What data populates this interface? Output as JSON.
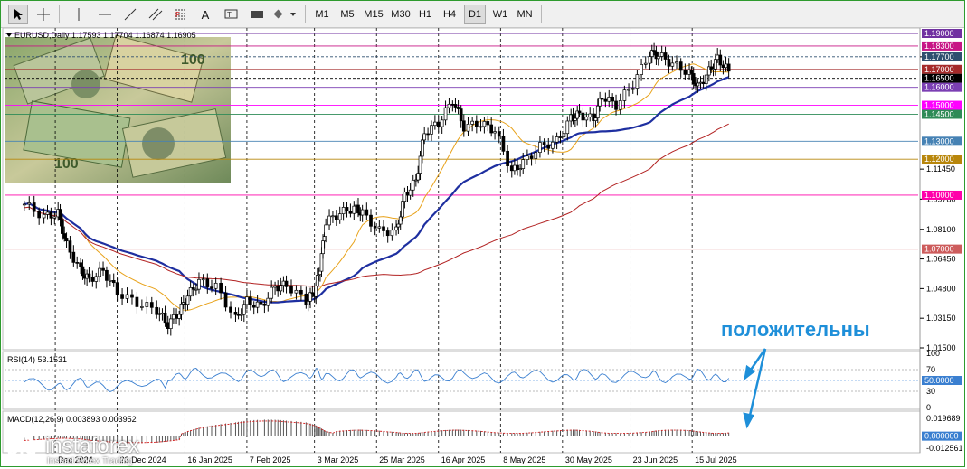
{
  "toolbar": {
    "tools": [
      {
        "name": "cursor-icon",
        "label": "↖"
      },
      {
        "name": "crosshair-icon",
        "label": "+"
      },
      {
        "name": "vertical-line-icon",
        "label": "|"
      },
      {
        "name": "horizontal-line-icon",
        "label": "—"
      },
      {
        "name": "trendline-icon",
        "label": "╱"
      },
      {
        "name": "channel-icon",
        "label": "⫽"
      },
      {
        "name": "fibonacci-icon",
        "label": "F"
      },
      {
        "name": "text-icon",
        "label": "A"
      },
      {
        "name": "label-icon",
        "label": "▬"
      },
      {
        "name": "shapes-icon",
        "label": "◆"
      }
    ],
    "timeframes": [
      "M1",
      "M5",
      "M15",
      "M30",
      "H1",
      "H4",
      "D1",
      "W1",
      "MN"
    ],
    "active_timeframe": "D1"
  },
  "chart": {
    "title": "EURUSD,Daily  1.17593 1.17704 1.16874 1.16905",
    "annotation": "положительны"
  },
  "price_axis": {
    "ticks": [
      "1.17700",
      "1.11450",
      "1.09780",
      "1.08100",
      "1.06450",
      "1.04800",
      "1.03150",
      "1.01500"
    ],
    "tags": [
      {
        "label": "1.19000",
        "color": "#7030a0"
      },
      {
        "label": "1.18300",
        "color": "#c71585"
      },
      {
        "label": "1.17700",
        "color": "#2f4f6f"
      },
      {
        "label": "1.17000",
        "color": "#a52a2a"
      },
      {
        "label": "1.16500",
        "color": "#000000"
      },
      {
        "label": "1.16000",
        "color": "#7b3fb3"
      },
      {
        "label": "1.15000",
        "color": "#ff00ff"
      },
      {
        "label": "1.14500",
        "color": "#2e8b57"
      },
      {
        "label": "1.13000",
        "color": "#4682b4"
      },
      {
        "label": "1.12000",
        "color": "#b8860b"
      },
      {
        "label": "1.10000",
        "color": "#ff00aa"
      },
      {
        "label": "1.07000",
        "color": "#cd5c5c"
      }
    ]
  },
  "time_axis": {
    "labels": [
      "Dec 2024",
      "23 Dec 2024",
      "16 Jan 2025",
      "7 Feb 2025",
      "3 Mar 2025",
      "25 Mar 2025",
      "16 Apr 2025",
      "8 May 2025",
      "30 May 2025",
      "23 Jun 2025",
      "15 Jul 2025"
    ]
  },
  "rsi": {
    "title": "RSI(14) 53.1531",
    "ticks": [
      "100",
      "70",
      "50.0000",
      "30",
      "0"
    ]
  },
  "macd": {
    "title": "MACD(12,26,9) 0.003893 0.003952",
    "ticks": [
      "0.019689",
      "0.000000",
      "-0.012561"
    ]
  },
  "branding": {
    "name": "instaforex",
    "subtitle": "Instant Forex Trading"
  },
  "colors": {
    "ma_fast": "#e8a21a",
    "ma_mid": "#1e2fa0",
    "ma_slow": "#b22222",
    "rsi_line": "#3a7fd0",
    "macd_hist": "#555555",
    "macd_signal": "#d62020",
    "annotation": "#1e8fd9"
  },
  "chart_data": {
    "type": "candlestick",
    "symbol": "EURUSD",
    "timeframe": "Daily",
    "ohlc": {
      "open": 1.17593,
      "high": 1.17704,
      "low": 1.16874,
      "close": 1.16905
    },
    "close_path": [
      [
        "2024-11-20",
        1.095
      ],
      [
        "2024-11-27",
        1.088
      ],
      [
        "2024-12-02",
        1.09
      ],
      [
        "2024-12-05",
        1.072
      ],
      [
        "2024-12-10",
        1.058
      ],
      [
        "2024-12-13",
        1.053
      ],
      [
        "2024-12-18",
        1.058
      ],
      [
        "2024-12-23",
        1.046
      ],
      [
        "2024-12-30",
        1.04
      ],
      [
        "2025-01-06",
        1.036
      ],
      [
        "2025-01-10",
        1.028
      ],
      [
        "2025-01-14",
        1.035
      ],
      [
        "2025-01-17",
        1.044
      ],
      [
        "2025-01-21",
        1.052
      ],
      [
        "2025-01-27",
        1.049
      ],
      [
        "2025-02-03",
        1.031
      ],
      [
        "2025-02-07",
        1.041
      ],
      [
        "2025-02-12",
        1.038
      ],
      [
        "2025-02-17",
        1.049
      ],
      [
        "2025-02-21",
        1.05
      ],
      [
        "2025-02-28",
        1.041
      ],
      [
        "2025-03-03",
        1.046
      ],
      [
        "2025-03-05",
        1.06
      ],
      [
        "2025-03-07",
        1.085
      ],
      [
        "2025-03-12",
        1.09
      ],
      [
        "2025-03-17",
        1.093
      ],
      [
        "2025-03-20",
        1.09
      ],
      [
        "2025-03-26",
        1.08
      ],
      [
        "2025-04-01",
        1.08
      ],
      [
        "2025-04-04",
        1.1
      ],
      [
        "2025-04-08",
        1.108
      ],
      [
        "2025-04-11",
        1.135
      ],
      [
        "2025-04-16",
        1.14
      ],
      [
        "2025-04-21",
        1.153
      ],
      [
        "2025-04-25",
        1.138
      ],
      [
        "2025-05-01",
        1.14
      ],
      [
        "2025-05-06",
        1.136
      ],
      [
        "2025-05-12",
        1.113
      ],
      [
        "2025-05-16",
        1.118
      ],
      [
        "2025-05-22",
        1.127
      ],
      [
        "2025-05-28",
        1.13
      ],
      [
        "2025-06-02",
        1.143
      ],
      [
        "2025-06-05",
        1.145
      ],
      [
        "2025-06-10",
        1.142
      ],
      [
        "2025-06-13",
        1.155
      ],
      [
        "2025-06-18",
        1.15
      ],
      [
        "2025-06-24",
        1.162
      ],
      [
        "2025-06-30",
        1.179
      ],
      [
        "2025-07-03",
        1.178
      ],
      [
        "2025-07-08",
        1.173
      ],
      [
        "2025-07-14",
        1.168
      ],
      [
        "2025-07-17",
        1.16
      ],
      [
        "2025-07-21",
        1.169
      ],
      [
        "2025-07-24",
        1.176
      ],
      [
        "2025-07-28",
        1.169
      ]
    ],
    "levels": [
      1.19,
      1.183,
      1.177,
      1.17,
      1.165,
      1.16,
      1.15,
      1.145,
      1.13,
      1.12,
      1.1,
      1.07
    ],
    "ylim": [
      1.015,
      1.19
    ],
    "rsi_last": 53.1531,
    "macd_last": [
      0.003893,
      0.003952
    ]
  }
}
